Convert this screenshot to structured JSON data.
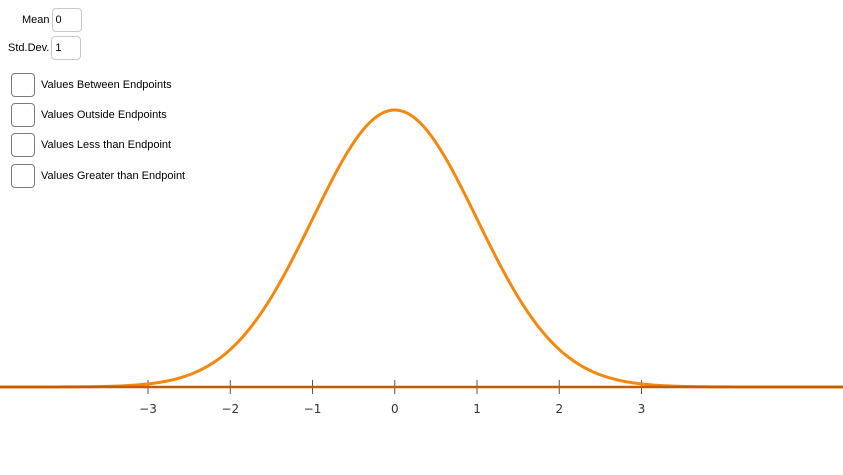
{
  "params": {
    "mean_label": "Mean",
    "mean_value": "0",
    "sd_label": "Std.Dev.",
    "sd_value": "1"
  },
  "checkboxes": [
    {
      "label": "Values Between Endpoints",
      "checked": false
    },
    {
      "label": "Values Outside Endpoints",
      "checked": false
    },
    {
      "label": "Values Less than Endpoint",
      "checked": false
    },
    {
      "label": "Values Greater than Endpoint",
      "checked": false
    }
  ],
  "chart_data": {
    "type": "line",
    "mean": 0,
    "sd": 1,
    "xlim": [
      -4.8,
      5.45
    ],
    "x_ticks": [
      "−3",
      "−2",
      "−1",
      "0",
      "1",
      "2",
      "3"
    ],
    "x_tick_values": [
      -3,
      -2,
      -1,
      0,
      1,
      2,
      3
    ],
    "grid": false,
    "curve_color": "#f5870f",
    "axis_color": "#555555"
  }
}
